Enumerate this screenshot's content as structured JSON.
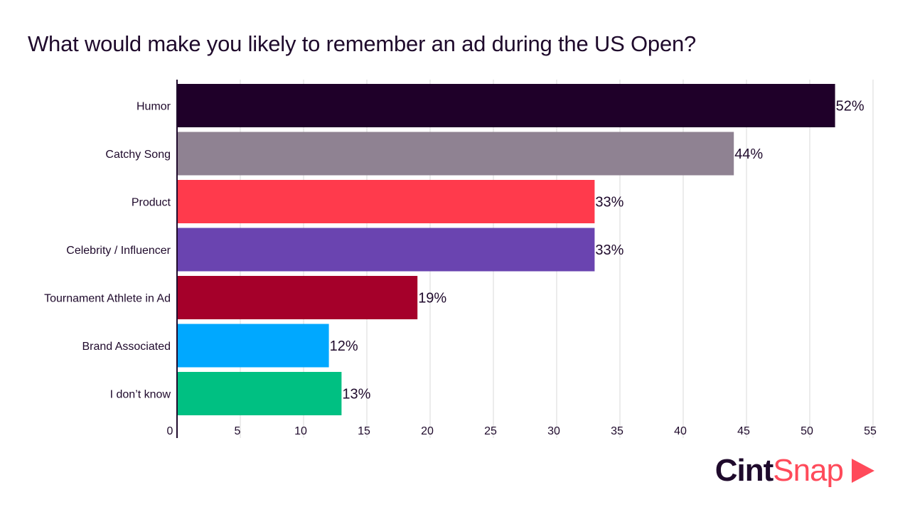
{
  "chart_data": {
    "type": "bar",
    "orientation": "horizontal",
    "title": "What would make you likely to remember an ad during the US Open?",
    "categories": [
      "Humor",
      "Catchy Song",
      "Product",
      "Celebrity / Influencer",
      "Tournament Athlete in Ad",
      "Brand Associated",
      "I don’t know"
    ],
    "values": [
      52,
      44,
      33,
      33,
      19,
      12,
      13
    ],
    "value_labels": [
      "52%",
      "44%",
      "33%",
      "33%",
      "19%",
      "12%",
      "13%"
    ],
    "colors": [
      "#1f0029",
      "#8f8292",
      "#ff3a4c",
      "#6a44b0",
      "#a5002a",
      "#00a8ff",
      "#00c082"
    ],
    "xlim": [
      0,
      55
    ],
    "xticks": [
      0,
      5,
      10,
      15,
      20,
      25,
      30,
      35,
      40,
      45,
      50,
      55
    ],
    "grid": true
  },
  "logo": {
    "part1": "Cint",
    "part2": "Snap"
  }
}
